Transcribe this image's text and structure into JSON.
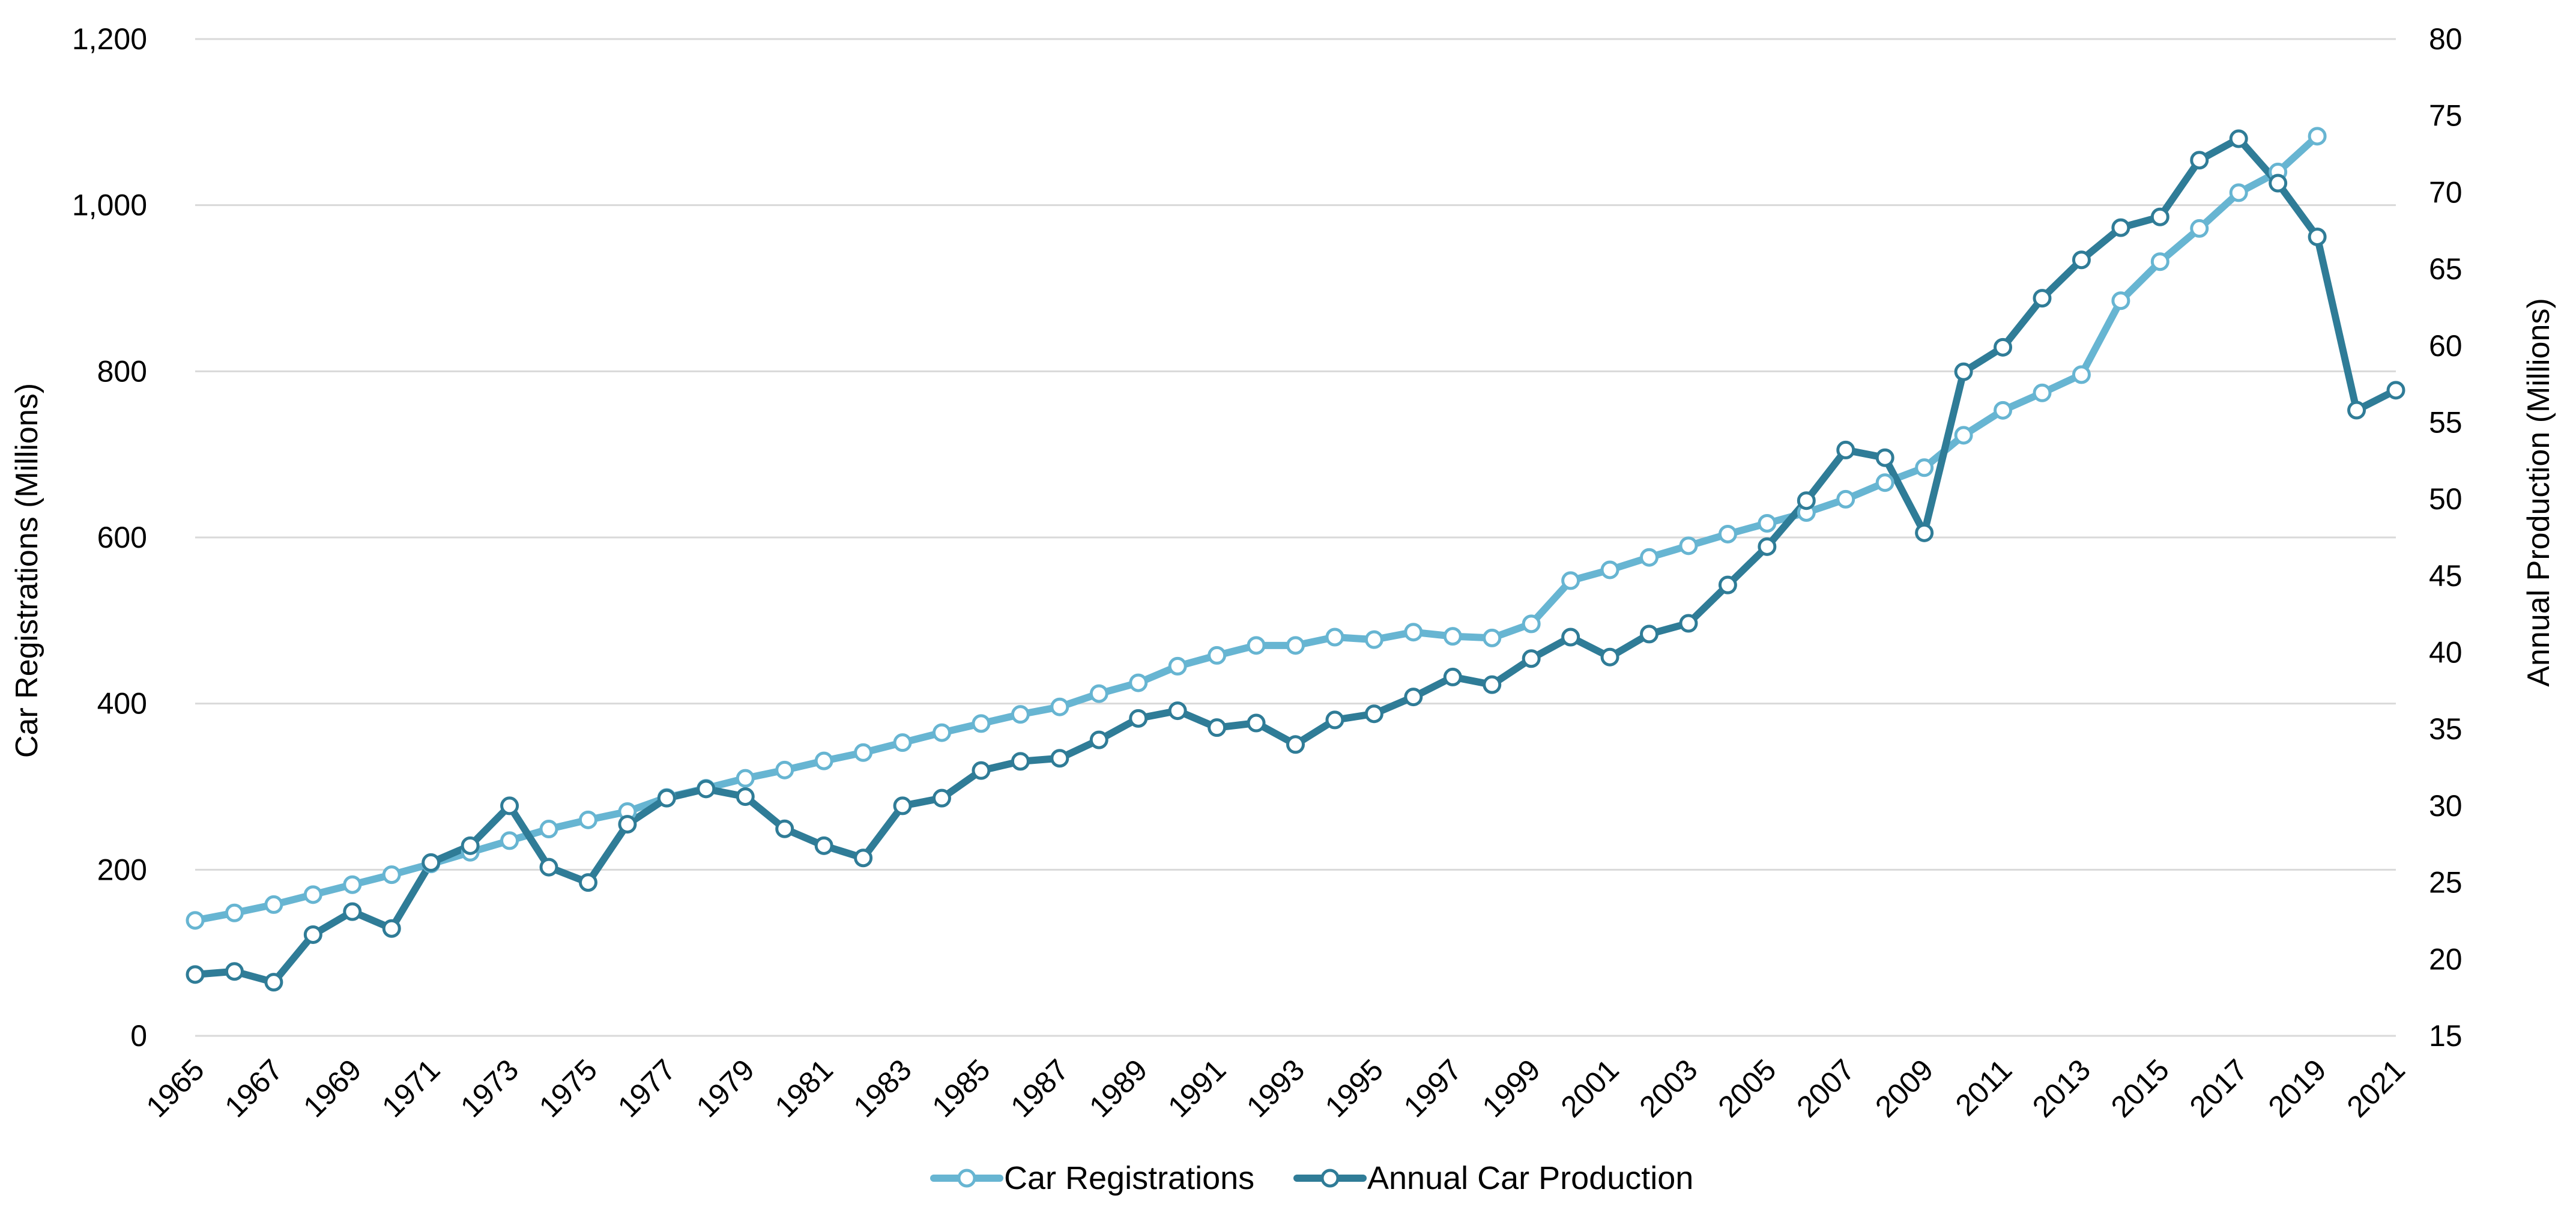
{
  "chart_data": {
    "type": "line",
    "x": [
      1965,
      1966,
      1967,
      1968,
      1969,
      1970,
      1971,
      1972,
      1973,
      1974,
      1975,
      1976,
      1977,
      1978,
      1979,
      1980,
      1981,
      1982,
      1983,
      1984,
      1985,
      1986,
      1987,
      1988,
      1989,
      1990,
      1991,
      1992,
      1993,
      1994,
      1995,
      1996,
      1997,
      1998,
      1999,
      2000,
      2001,
      2002,
      2003,
      2004,
      2005,
      2006,
      2007,
      2008,
      2009,
      2010,
      2011,
      2012,
      2013,
      2014,
      2015,
      2016,
      2017,
      2018,
      2019,
      2020,
      2021
    ],
    "x_tick_labels": [
      "1965",
      "1967",
      "1969",
      "1971",
      "1973",
      "1975",
      "1977",
      "1979",
      "1981",
      "1983",
      "1985",
      "1987",
      "1989",
      "1991",
      "1993",
      "1995",
      "1997",
      "1999",
      "2001",
      "2003",
      "2005",
      "2007",
      "2009",
      "2011",
      "2013",
      "2015",
      "2017",
      "2019",
      "2021"
    ],
    "ylabel": "Car Registrations (Millions)",
    "ylim": [
      0,
      1200
    ],
    "y_ticks": [
      0,
      200,
      400,
      600,
      800,
      1000,
      1200
    ],
    "y_tick_labels": [
      "0",
      "200",
      "400",
      "600",
      "800",
      "1,000",
      "1,200"
    ],
    "y2label": "Annual Production (Millions)",
    "y2lim": [
      15,
      80
    ],
    "y2_ticks": [
      15,
      20,
      25,
      30,
      35,
      40,
      45,
      50,
      55,
      60,
      65,
      70,
      75,
      80
    ],
    "y2_tick_labels": [
      "15",
      "20",
      "25",
      "30",
      "35",
      "40",
      "45",
      "50",
      "55",
      "60",
      "65",
      "70",
      "75",
      "80"
    ],
    "grid": true,
    "legend_position": "bottom",
    "series": [
      {
        "name": "Car Registrations",
        "axis": "left",
        "color": "#67b5d2",
        "values": [
          139,
          148,
          158,
          170,
          182,
          194,
          207,
          221,
          235,
          249,
          260,
          270,
          287,
          298,
          310,
          320,
          331,
          341,
          353,
          365,
          376,
          387,
          396,
          412,
          425,
          445,
          458,
          470,
          470,
          480,
          477,
          486,
          481,
          479,
          496,
          548,
          561,
          576,
          590,
          604,
          617,
          630,
          646,
          666,
          684,
          723,
          753,
          774,
          796,
          885,
          932,
          972,
          1015,
          1040,
          1083,
          null,
          null
        ]
      },
      {
        "name": "Annual Car Production",
        "axis": "right",
        "color": "#2f7c97",
        "values": [
          19.0,
          19.2,
          18.5,
          21.6,
          23.1,
          22.0,
          26.3,
          27.4,
          30.0,
          26.0,
          25.0,
          28.8,
          30.5,
          31.1,
          30.6,
          28.5,
          27.4,
          26.6,
          30.0,
          30.5,
          32.3,
          32.9,
          33.1,
          34.3,
          35.7,
          36.2,
          35.1,
          35.4,
          34.0,
          35.6,
          36.0,
          37.1,
          38.4,
          37.9,
          39.6,
          41.0,
          39.7,
          41.2,
          41.9,
          44.4,
          46.9,
          49.9,
          53.2,
          52.7,
          47.8,
          58.3,
          59.9,
          63.1,
          65.6,
          67.7,
          68.4,
          72.1,
          73.5,
          70.6,
          67.1,
          55.8,
          57.1
        ]
      }
    ]
  }
}
